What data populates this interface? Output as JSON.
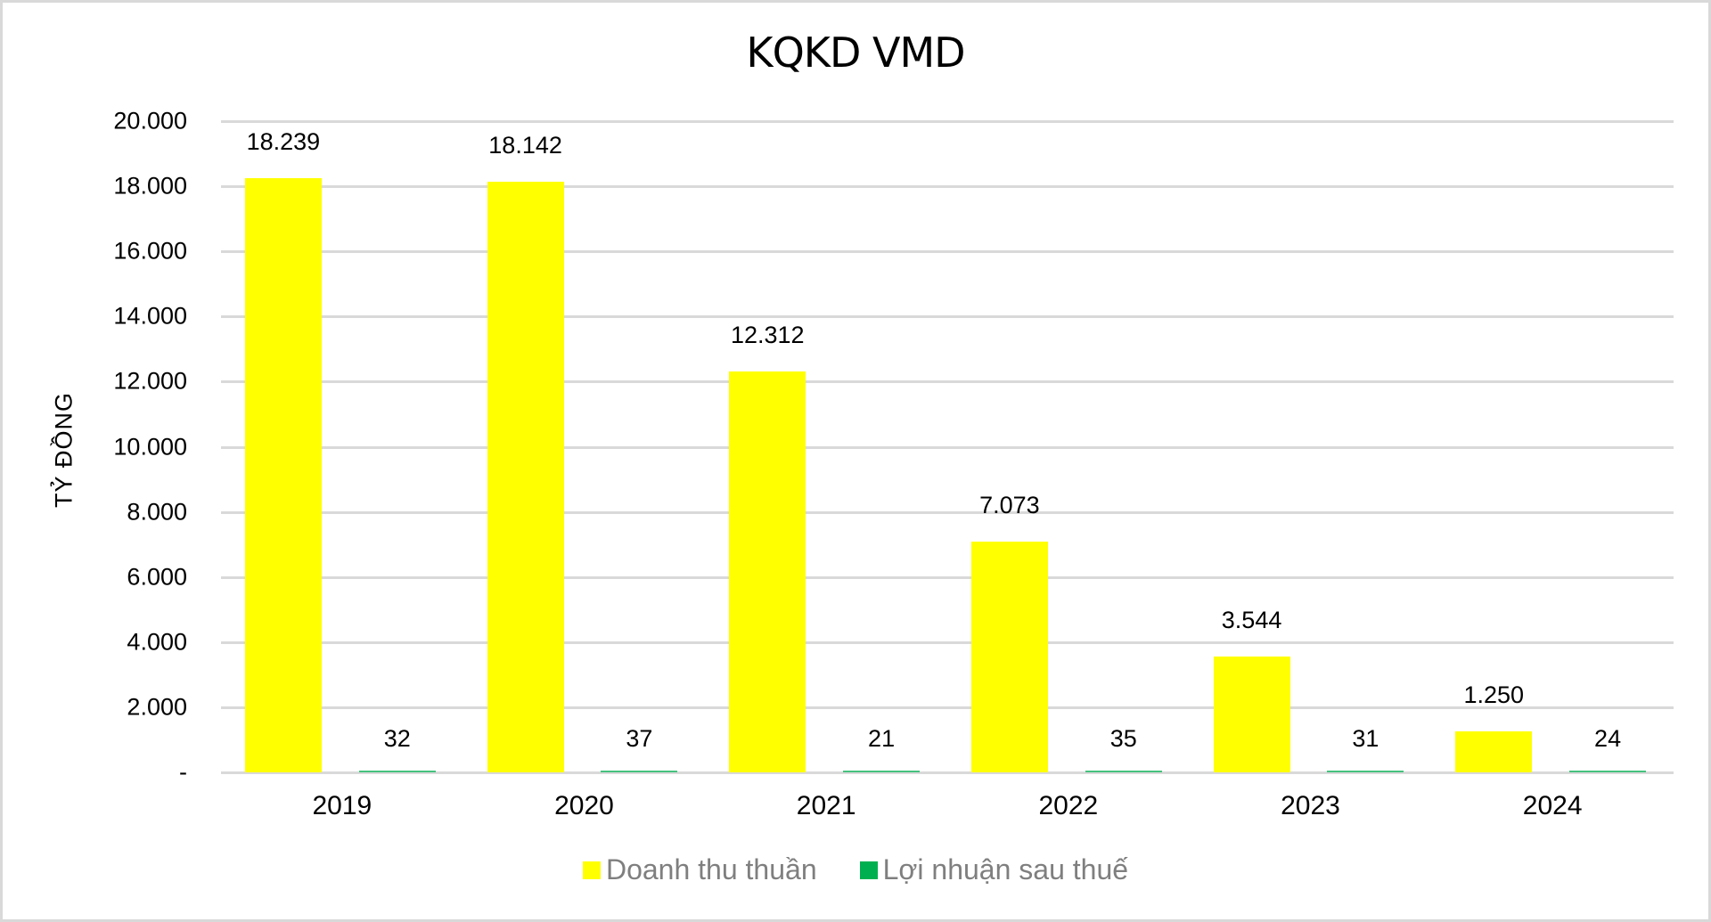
{
  "chart_data": {
    "type": "bar",
    "title": "KQKD VMD",
    "xlabel": "",
    "ylabel": "TỶ ĐỒNG",
    "ylim": [
      0,
      20000
    ],
    "grid": true,
    "legend_position": "bottom",
    "categories": [
      "2019",
      "2020",
      "2021",
      "2022",
      "2023",
      "2024"
    ],
    "yticks": [
      {
        "value": 0,
        "label": "-"
      },
      {
        "value": 2000,
        "label": "2.000"
      },
      {
        "value": 4000,
        "label": "4.000"
      },
      {
        "value": 6000,
        "label": "6.000"
      },
      {
        "value": 8000,
        "label": "8.000"
      },
      {
        "value": 10000,
        "label": "10.000"
      },
      {
        "value": 12000,
        "label": "12.000"
      },
      {
        "value": 14000,
        "label": "14.000"
      },
      {
        "value": 16000,
        "label": "16.000"
      },
      {
        "value": 18000,
        "label": "18.000"
      },
      {
        "value": 20000,
        "label": "20.000"
      }
    ],
    "series": [
      {
        "name": "Doanh thu thuần",
        "color": "#ffff00",
        "values": [
          18239,
          18142,
          12312,
          7073,
          3544,
          1250
        ],
        "labels": [
          "18.239",
          "18.142",
          "12.312",
          "7.073",
          "3.544",
          "1.250"
        ]
      },
      {
        "name": "Lợi nhuận sau thuế",
        "color": "#00b050",
        "values": [
          32,
          37,
          21,
          35,
          31,
          24
        ],
        "labels": [
          "32",
          "37",
          "21",
          "35",
          "31",
          "24"
        ]
      }
    ]
  },
  "legend": {
    "items": [
      {
        "label": "Doanh thu thuần",
        "color": "#ffff00"
      },
      {
        "label": "Lợi nhuận sau thuế",
        "color": "#00b050"
      }
    ]
  }
}
